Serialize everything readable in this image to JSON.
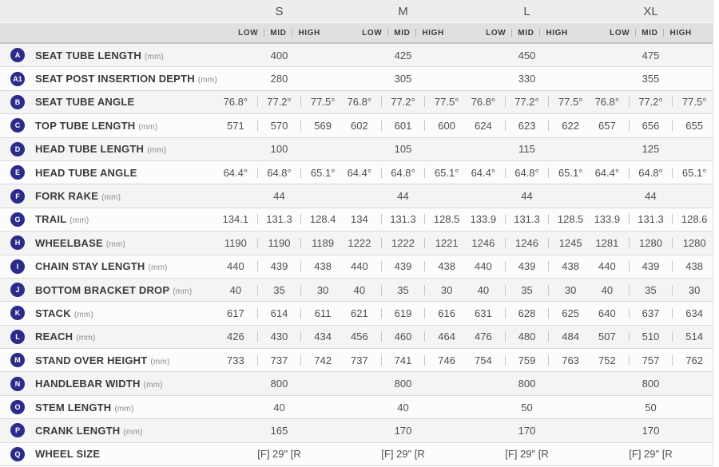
{
  "table": {
    "sizes": [
      "S",
      "M",
      "L",
      "XL"
    ],
    "position_labels": [
      "LOW",
      "MID",
      "HIGH"
    ],
    "rows": [
      {
        "badge": "A",
        "label": "SEAT TUBE LENGTH",
        "unit": "(mm)",
        "values": [
          [
            "400"
          ],
          [
            "425"
          ],
          [
            "450"
          ],
          [
            "475"
          ]
        ]
      },
      {
        "badge": "A1",
        "label": "SEAT POST INSERTION DEPTH",
        "unit": "(mm)",
        "values": [
          [
            "280"
          ],
          [
            "305"
          ],
          [
            "330"
          ],
          [
            "355"
          ]
        ]
      },
      {
        "badge": "B",
        "label": "SEAT TUBE ANGLE",
        "unit": "",
        "values": [
          [
            "76.8°",
            "77.2°",
            "77.5°"
          ],
          [
            "76.8°",
            "77.2°",
            "77.5°"
          ],
          [
            "76.8°",
            "77.2°",
            "77.5°"
          ],
          [
            "76.8°",
            "77.2°",
            "77.5°"
          ]
        ]
      },
      {
        "badge": "C",
        "label": "TOP TUBE LENGTH",
        "unit": "(mm)",
        "values": [
          [
            "571",
            "570",
            "569"
          ],
          [
            "602",
            "601",
            "600"
          ],
          [
            "624",
            "623",
            "622"
          ],
          [
            "657",
            "656",
            "655"
          ]
        ]
      },
      {
        "badge": "D",
        "label": "HEAD TUBE LENGTH",
        "unit": "(mm)",
        "values": [
          [
            "100"
          ],
          [
            "105"
          ],
          [
            "115"
          ],
          [
            "125"
          ]
        ]
      },
      {
        "badge": "E",
        "label": "HEAD TUBE ANGLE",
        "unit": "",
        "values": [
          [
            "64.4°",
            "64.8°",
            "65.1°"
          ],
          [
            "64.4°",
            "64.8°",
            "65.1°"
          ],
          [
            "64.4°",
            "64.8°",
            "65.1°"
          ],
          [
            "64.4°",
            "64.8°",
            "65.1°"
          ]
        ]
      },
      {
        "badge": "F",
        "label": "FORK RAKE",
        "unit": "(mm)",
        "values": [
          [
            "44"
          ],
          [
            "44"
          ],
          [
            "44"
          ],
          [
            "44"
          ]
        ]
      },
      {
        "badge": "G",
        "label": "TRAIL",
        "unit": "(mm)",
        "values": [
          [
            "134.1",
            "131.3",
            "128.4"
          ],
          [
            "134",
            "131.3",
            "128.5"
          ],
          [
            "133.9",
            "131.3",
            "128.5"
          ],
          [
            "133.9",
            "131.3",
            "128.6"
          ]
        ]
      },
      {
        "badge": "H",
        "label": "WHEELBASE",
        "unit": "(mm)",
        "values": [
          [
            "1190",
            "1190",
            "1189"
          ],
          [
            "1222",
            "1222",
            "1221"
          ],
          [
            "1246",
            "1246",
            "1245"
          ],
          [
            "1281",
            "1280",
            "1280"
          ]
        ]
      },
      {
        "badge": "I",
        "label": "CHAIN STAY LENGTH",
        "unit": "(mm)",
        "values": [
          [
            "440",
            "439",
            "438"
          ],
          [
            "440",
            "439",
            "438"
          ],
          [
            "440",
            "439",
            "438"
          ],
          [
            "440",
            "439",
            "438"
          ]
        ]
      },
      {
        "badge": "J",
        "label": "BOTTOM BRACKET DROP",
        "unit": "(mm)",
        "values": [
          [
            "40",
            "35",
            "30"
          ],
          [
            "40",
            "35",
            "30"
          ],
          [
            "40",
            "35",
            "30"
          ],
          [
            "40",
            "35",
            "30"
          ]
        ]
      },
      {
        "badge": "K",
        "label": "STACK",
        "unit": "(mm)",
        "values": [
          [
            "617",
            "614",
            "611"
          ],
          [
            "621",
            "619",
            "616"
          ],
          [
            "631",
            "628",
            "625"
          ],
          [
            "640",
            "637",
            "634"
          ]
        ]
      },
      {
        "badge": "L",
        "label": "REACH",
        "unit": "(mm)",
        "values": [
          [
            "426",
            "430",
            "434"
          ],
          [
            "456",
            "460",
            "464"
          ],
          [
            "476",
            "480",
            "484"
          ],
          [
            "507",
            "510",
            "514"
          ]
        ]
      },
      {
        "badge": "M",
        "label": "STAND OVER HEIGHT",
        "unit": "(mm)",
        "values": [
          [
            "733",
            "737",
            "742"
          ],
          [
            "737",
            "741",
            "746"
          ],
          [
            "754",
            "759",
            "763"
          ],
          [
            "752",
            "757",
            "762"
          ]
        ]
      },
      {
        "badge": "N",
        "label": "HANDLEBAR WIDTH",
        "unit": "(mm)",
        "values": [
          [
            "800"
          ],
          [
            "800"
          ],
          [
            "800"
          ],
          [
            "800"
          ]
        ]
      },
      {
        "badge": "O",
        "label": "STEM LENGTH",
        "unit": "(mm)",
        "values": [
          [
            "40"
          ],
          [
            "40"
          ],
          [
            "50"
          ],
          [
            "50"
          ]
        ]
      },
      {
        "badge": "P",
        "label": "CRANK LENGTH",
        "unit": "(mm)",
        "values": [
          [
            "165"
          ],
          [
            "170"
          ],
          [
            "170"
          ],
          [
            "170"
          ]
        ]
      },
      {
        "badge": "Q",
        "label": "WHEEL SIZE",
        "unit": "",
        "values": [
          [
            "[F] 29\" [R"
          ],
          [
            "[F] 29\" [R"
          ],
          [
            "[F] 29\" [R"
          ],
          [
            "[F] 29\" [R"
          ]
        ]
      }
    ]
  },
  "colors": {
    "badge_bg": "#2b2b8a",
    "badge_text": "#ffffff",
    "header_bg": "#eeedee",
    "subheader_bg": "#e0e0e0",
    "row_alt_bg": "#f4f4f4",
    "row_bg": "#fcfcfc",
    "divider": "#d9d9d9",
    "label_text": "#3b3b3b",
    "value_text": "#4f4f4f"
  }
}
